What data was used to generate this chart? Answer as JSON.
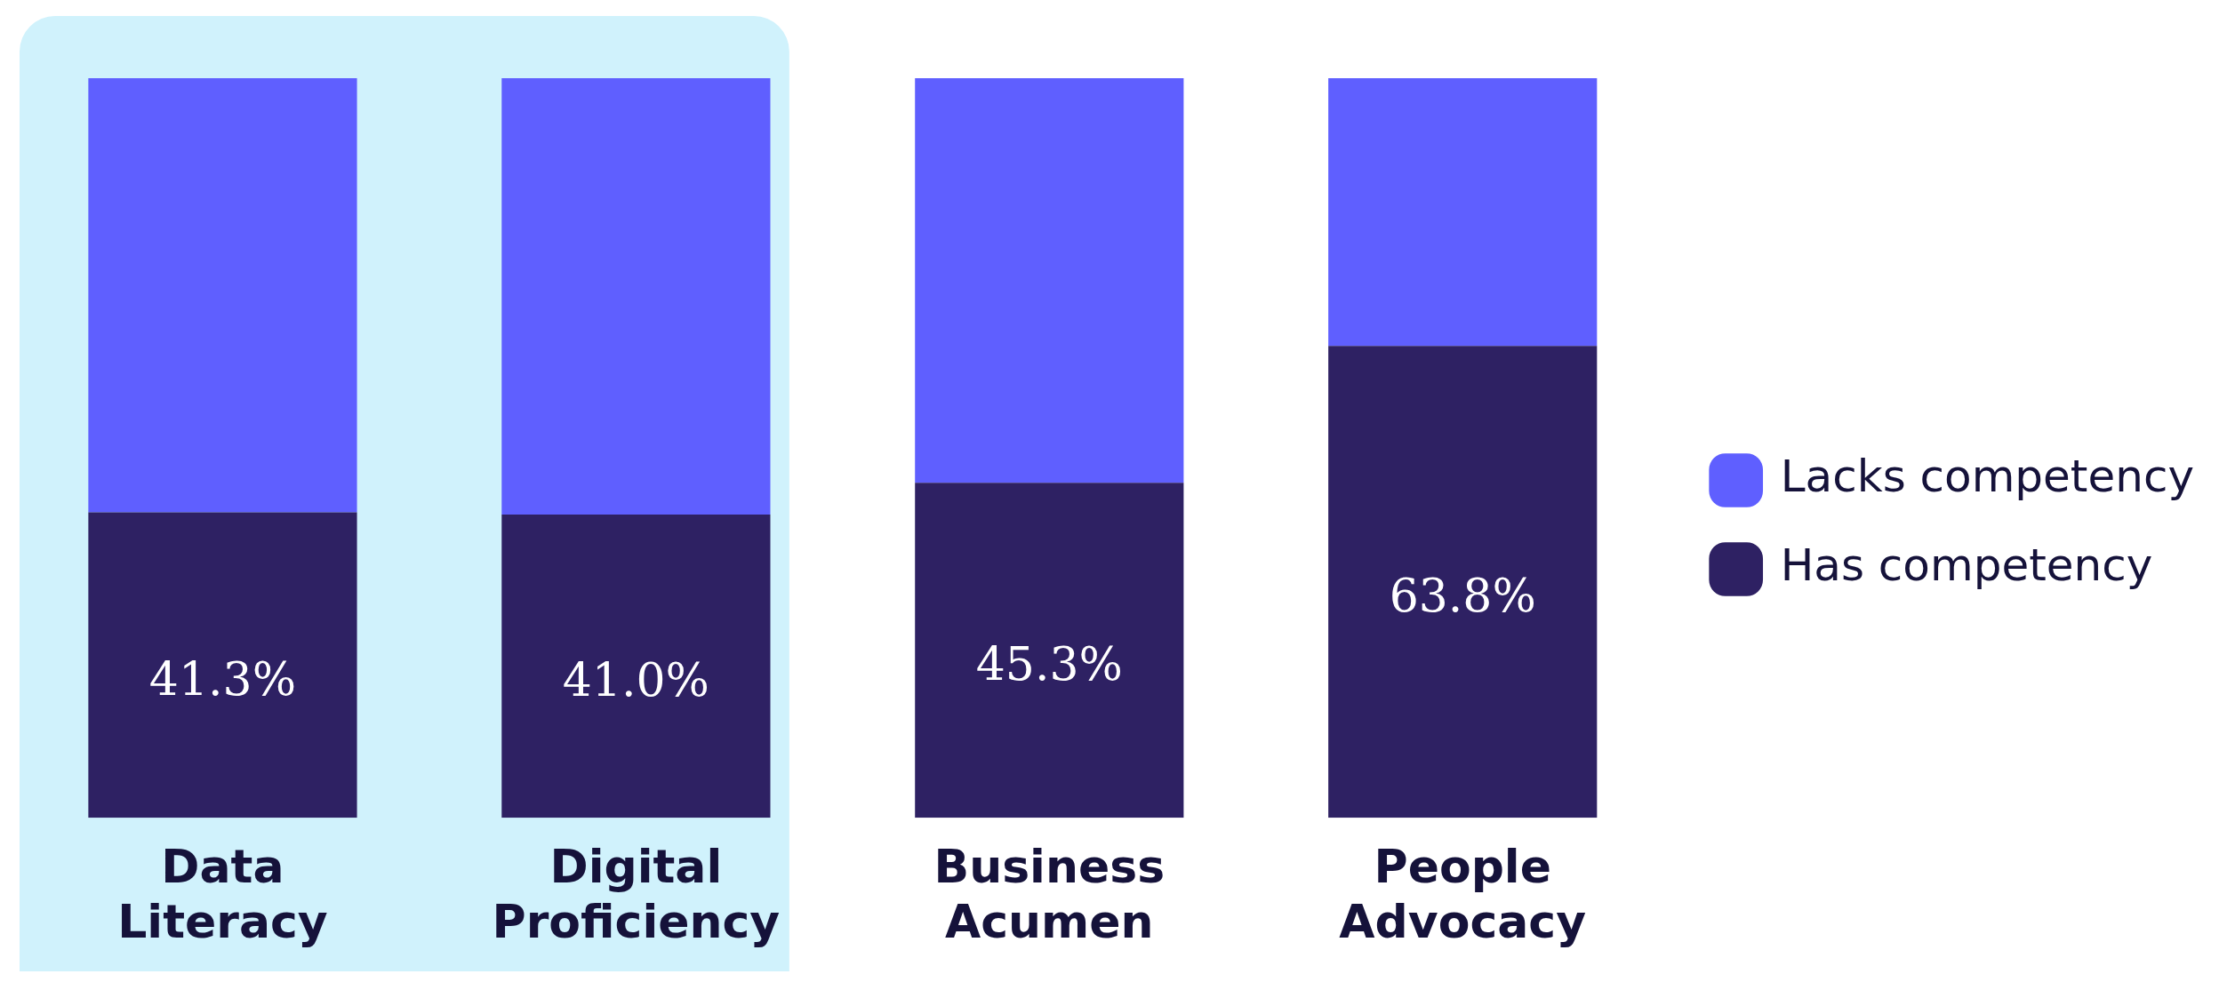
{
  "chart_data": {
    "type": "bar",
    "stacked": true,
    "categories": [
      "Data Literacy",
      "Digital Proficiency",
      "Business Acumen",
      "People Advocacy"
    ],
    "series": [
      {
        "name": "Has competency",
        "color": "#2e2163",
        "values": [
          41.3,
          41.0,
          45.3,
          63.8
        ],
        "value_labels": [
          "41.3%",
          "41.0%",
          "45.3%",
          "63.8%"
        ]
      },
      {
        "name": "Lacks competency",
        "color": "#5f5fff",
        "values": [
          58.7,
          59.0,
          54.7,
          36.2
        ]
      }
    ],
    "bands": [
      {
        "axis": "x",
        "from": "Data Literacy",
        "to": "Digital Proficiency",
        "color": "#d0f2fc"
      }
    ],
    "legend": "right",
    "grid": false
  }
}
